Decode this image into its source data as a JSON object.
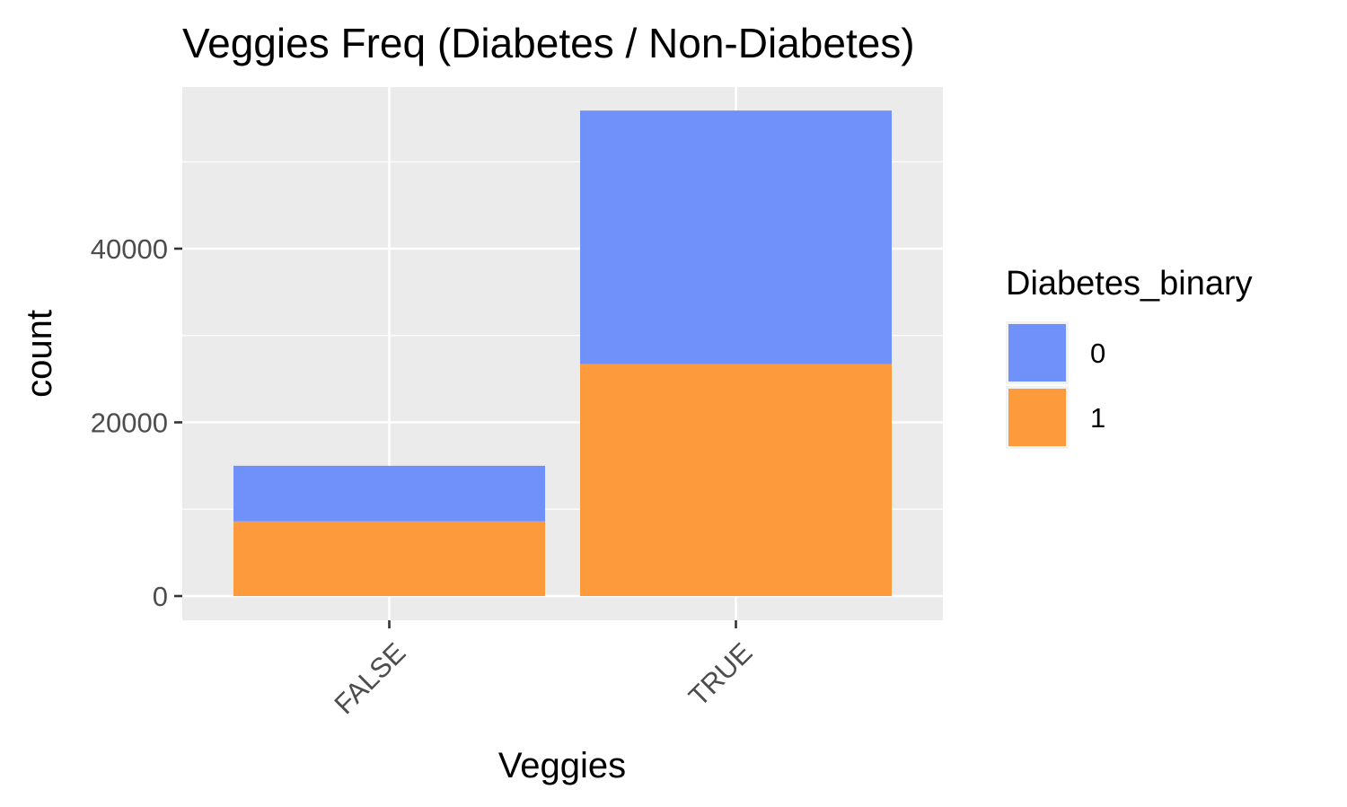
{
  "chart_data": {
    "type": "bar",
    "stacked": true,
    "title": "Veggies Freq (Diabetes / Non-Diabetes)",
    "xlabel": "Veggies",
    "ylabel": "count",
    "categories": [
      "FALSE",
      "TRUE"
    ],
    "y_ticks": [
      0,
      20000,
      40000
    ],
    "ylim": [
      0,
      58500
    ],
    "grid": true,
    "legend": {
      "title": "Diabetes_binary",
      "position": "right"
    },
    "series": [
      {
        "name": "1",
        "color": "#fd9a3c",
        "values": [
          8600,
          26700
        ]
      },
      {
        "name": "0",
        "color": "#7191fa",
        "values": [
          6400,
          29200
        ]
      }
    ],
    "legend_order": [
      "0",
      "1"
    ],
    "colors": {
      "panel_background": "#ebebeb",
      "grid_line": "#ffffff",
      "tick_text": "#4d4d4d",
      "tick_mark": "#333333"
    }
  }
}
